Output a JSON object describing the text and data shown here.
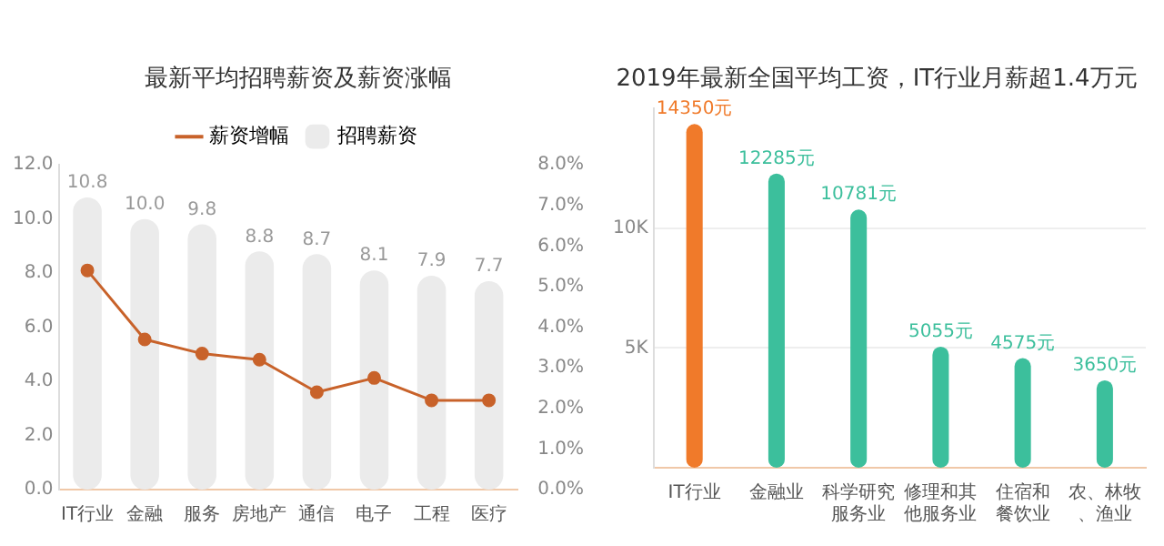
{
  "chart_data": [
    {
      "type": "bar",
      "title": "最新平均招聘薪资及薪资涨幅",
      "categories": [
        "IT行业",
        "金融",
        "服务",
        "房地产",
        "通信",
        "电子",
        "工程",
        "医疗"
      ],
      "series": [
        {
          "name": "薪资增幅",
          "type": "line",
          "axis": "y2",
          "color": "#c8622a",
          "values": [
            5.4,
            3.7,
            3.35,
            3.2,
            2.4,
            2.75,
            2.2,
            2.2
          ]
        },
        {
          "name": "招聘薪资",
          "type": "bar",
          "color": "#ebebeb",
          "values": [
            10.8,
            10.0,
            9.8,
            8.8,
            8.7,
            8.1,
            7.9,
            7.7
          ],
          "value_labels": [
            "10.8",
            "10.0",
            "9.8",
            "8.8",
            "8.7",
            "8.1",
            "7.9",
            "7.7"
          ]
        }
      ],
      "ylim": [
        0,
        12
      ],
      "yticks": [
        {
          "value": 0,
          "label": "0.0"
        },
        {
          "value": 2,
          "label": "2.0"
        },
        {
          "value": 4,
          "label": "4.0"
        },
        {
          "value": 6,
          "label": "6.0"
        },
        {
          "value": 8,
          "label": "8.0"
        },
        {
          "value": 10,
          "label": "10.0"
        },
        {
          "value": 12,
          "label": "12.0"
        }
      ],
      "y2lim": [
        0,
        8
      ],
      "y2ticks": [
        {
          "value": 0,
          "label": "0.0%"
        },
        {
          "value": 1,
          "label": "1.0%"
        },
        {
          "value": 2,
          "label": "2.0%"
        },
        {
          "value": 3,
          "label": "3.0%"
        },
        {
          "value": 4,
          "label": "4.0%"
        },
        {
          "value": 5,
          "label": "5.0%"
        },
        {
          "value": 6,
          "label": "6.0%"
        },
        {
          "value": 7,
          "label": "7.0%"
        },
        {
          "value": 8,
          "label": "8.0%"
        }
      ],
      "legend": "top",
      "marker": "circle",
      "line_style": "solid"
    },
    {
      "type": "bar",
      "title": "2019年最新全国平均工资，IT行业月薪超1.4万元",
      "categories": [
        "IT行业",
        "金融业",
        "科学研究服务业",
        "修理和其他服务业",
        "住宿和餐饮业",
        "农、林牧、渔业"
      ],
      "values": [
        14350,
        12285,
        10781,
        5055,
        4575,
        3650
      ],
      "colors": [
        "#f07a2a",
        "#3cbf9c",
        "#3cbf9c",
        "#3cbf9c",
        "#3cbf9c",
        "#3cbf9c"
      ],
      "value_labels": [
        "14350元",
        "12285元",
        "10781元",
        "5055元",
        "4575元",
        "3650元"
      ],
      "ylim": [
        0,
        15000
      ],
      "yticks": [
        {
          "value": 5000,
          "label": "5K"
        },
        {
          "value": 10000,
          "label": "10K"
        }
      ],
      "grid": "y"
    }
  ]
}
